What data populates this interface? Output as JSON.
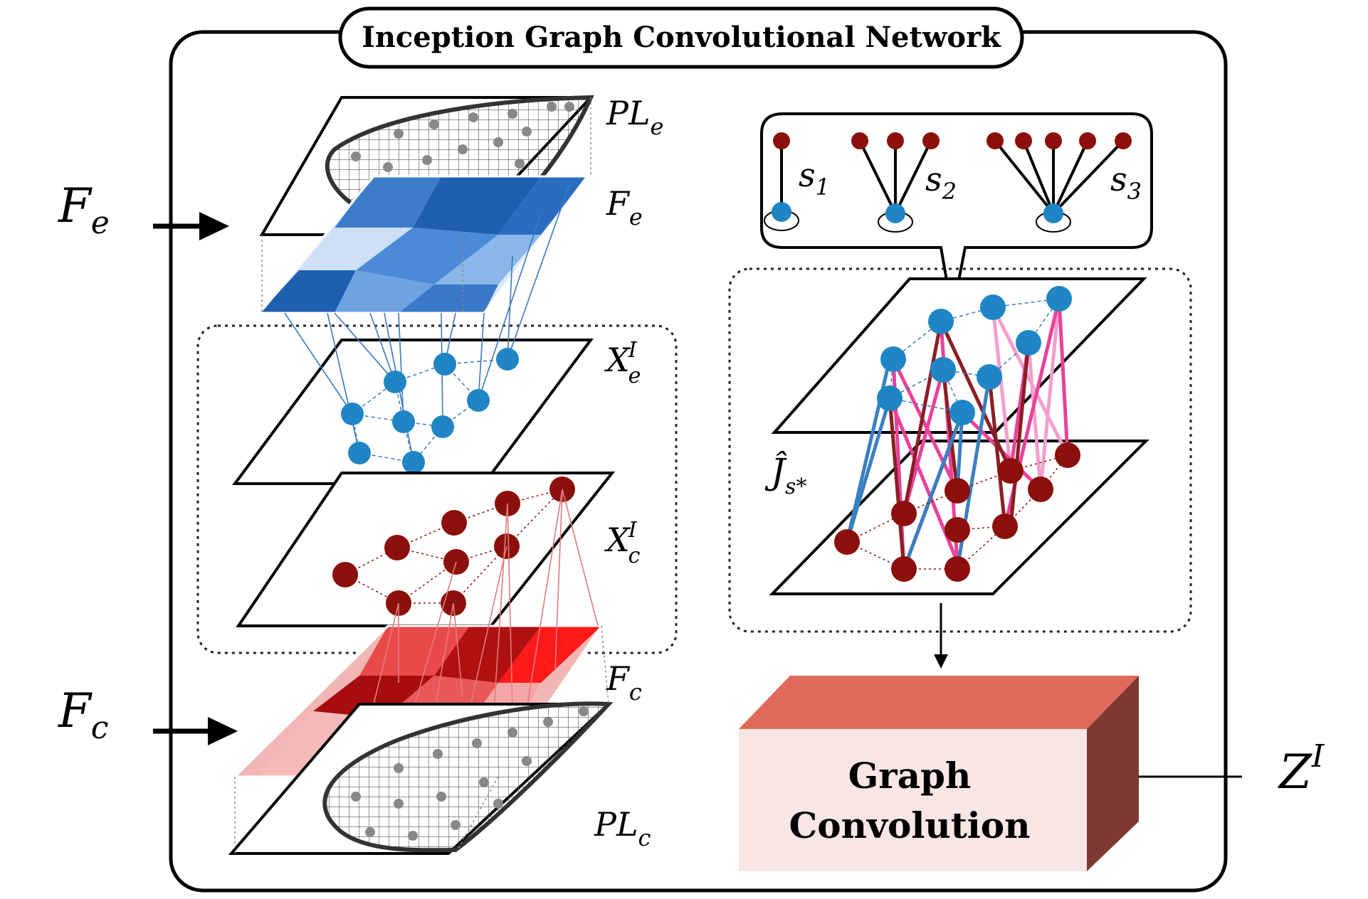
{
  "title": "Inception Graph Convolutional Network",
  "inputs": {
    "fe_main": "F",
    "fe_main_sub": "e",
    "fc_main": "F",
    "fc_main_sub": "c"
  },
  "layers": {
    "ple": "PL",
    "ple_sub": "e",
    "fe": "F",
    "fe_sub": "e",
    "xe": "X",
    "xe_sup": "I",
    "xe_sub": "e",
    "xc": "X",
    "xc_sup": "I",
    "xc_sub": "c",
    "fc": "F",
    "fc_sub": "c",
    "plc": "PL",
    "plc_sub": "c"
  },
  "stencils": [
    {
      "label": "s",
      "sub": "1"
    },
    {
      "label": "s",
      "sub": "2"
    },
    {
      "label": "s",
      "sub": "3"
    }
  ],
  "jhat": {
    "label": "Ĵ",
    "sub": "s*"
  },
  "box": {
    "line1": "Graph",
    "line2": "Convolution"
  },
  "output": {
    "label": "Z",
    "sup": "I"
  },
  "colors": {
    "blue_node": "#1f85c5",
    "red_node": "#8b0f0a",
    "pink_edge": "#e8429a",
    "light_pink_edge": "#f29fcd",
    "dark_red_edge": "#8a1f24",
    "blue_edge": "#3a80c0",
    "box_front": "#f7e6e4",
    "box_top": "#e06a5a",
    "box_side": "#7e3a30"
  }
}
